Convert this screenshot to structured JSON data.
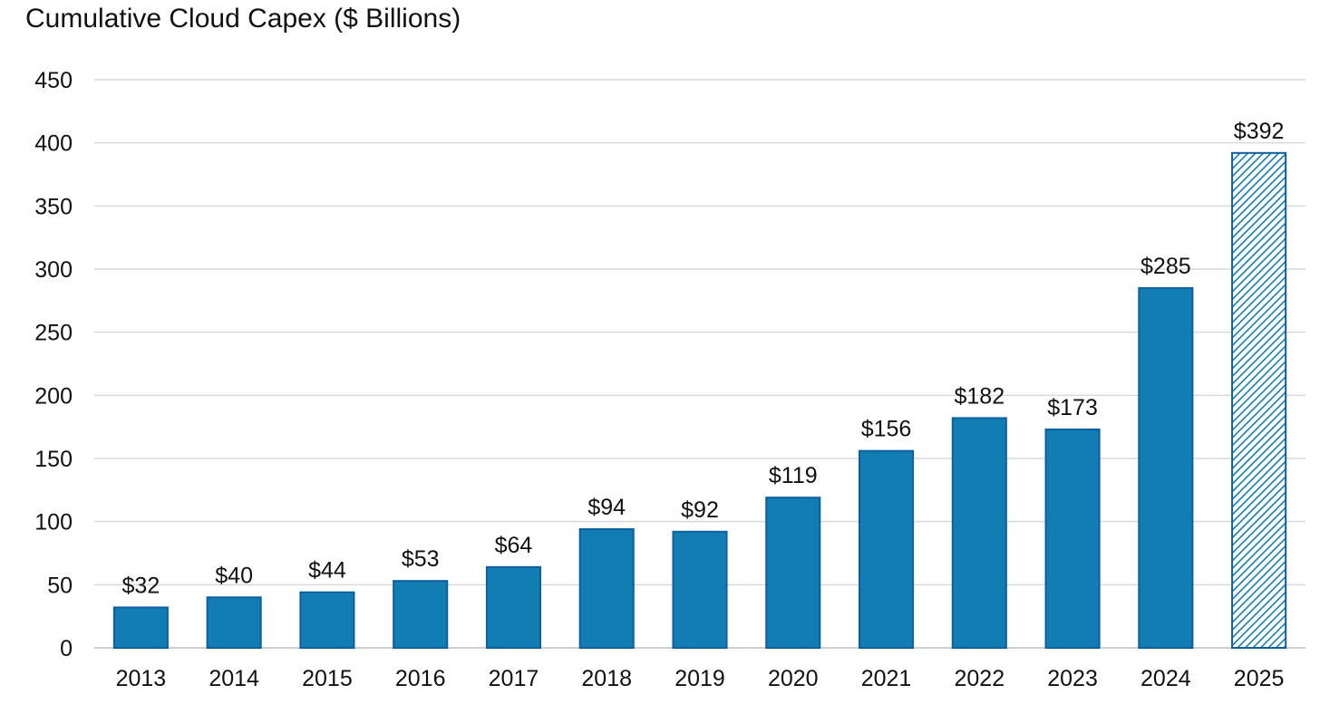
{
  "chart_data": {
    "type": "bar",
    "title": "Cumulative Cloud Capex ($ Billions)",
    "xlabel": "",
    "ylabel": "",
    "categories": [
      "2013",
      "2014",
      "2015",
      "2016",
      "2017",
      "2018",
      "2019",
      "2020",
      "2021",
      "2022",
      "2023",
      "2024",
      "2025"
    ],
    "values": [
      32,
      40,
      44,
      53,
      64,
      94,
      92,
      119,
      156,
      182,
      173,
      285,
      392
    ],
    "data_labels": [
      "$32",
      "$40",
      "$44",
      "$53",
      "$64",
      "$94",
      "$92",
      "$119",
      "$156",
      "$182",
      "$173",
      "$285",
      "$392"
    ],
    "hatched": [
      false,
      false,
      false,
      false,
      false,
      false,
      false,
      false,
      false,
      false,
      false,
      false,
      true
    ],
    "ylim": [
      0,
      450
    ],
    "yticks": [
      0,
      50,
      100,
      150,
      200,
      250,
      300,
      350,
      400,
      450
    ],
    "ytick_labels": [
      "0",
      "50",
      "100",
      "150",
      "200",
      "250",
      "300",
      "350",
      "400",
      "450"
    ],
    "grid": true,
    "legend": "none",
    "colors": {
      "bar_fill": "#127db3",
      "bar_edge": "#0d5fa0",
      "hatch_line": "#127db3",
      "grid": "#d9d9d9",
      "axis": "#bfbfbf",
      "text": "#111111"
    }
  }
}
